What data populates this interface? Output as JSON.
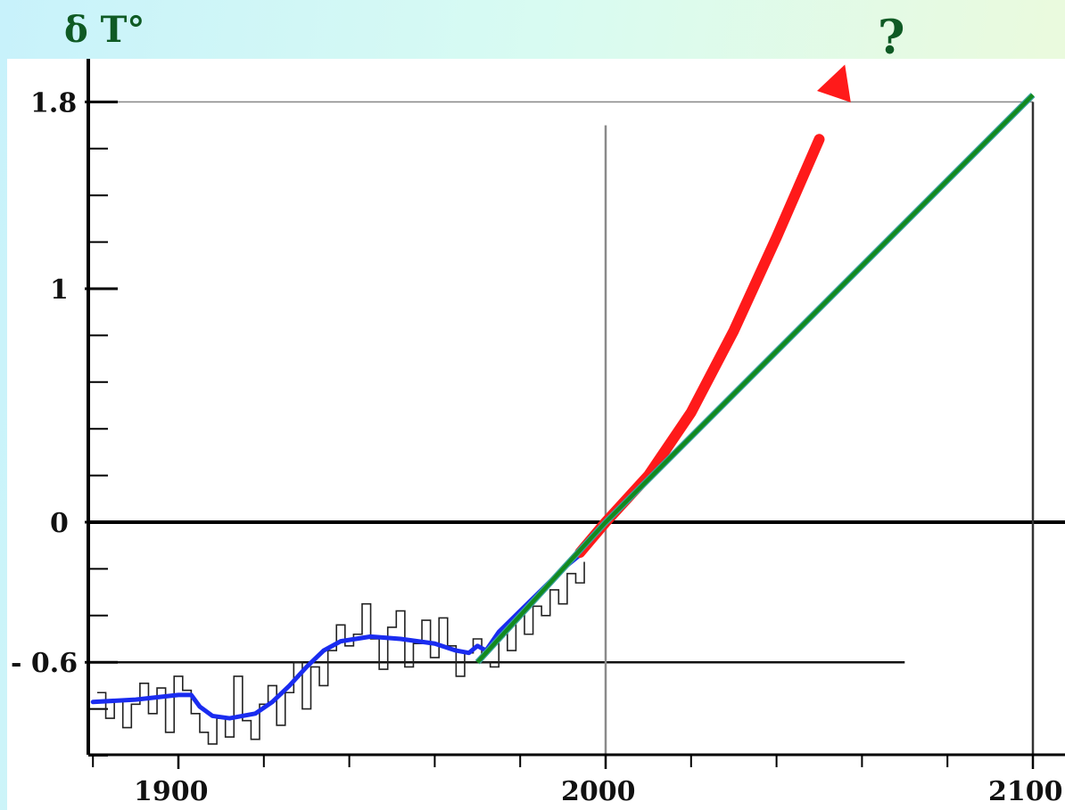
{
  "header": {
    "ylabel": "δ T°",
    "annotation": "?"
  },
  "colors": {
    "background": "#cdf6fb",
    "plot_area": "#ffffff",
    "observed_raw": "#222222",
    "observed_smooth": "#1a2cf0",
    "projection_high": "#ff1a1a",
    "projection_linear": "#138a1e",
    "label_green": "#0f5a24"
  },
  "chart_data": {
    "type": "line",
    "title": "",
    "xlabel": "",
    "ylabel": "δ T°",
    "xlim": [
      1880,
      2110
    ],
    "ylim": [
      -1.0,
      1.9
    ],
    "x_ticks_labeled": [
      1900,
      2000,
      2100
    ],
    "x_tick_labels": [
      "1900",
      "2000",
      "2100"
    ],
    "x_ticks_minor": [
      1880,
      1920,
      1940,
      1960,
      1980,
      2020,
      2040,
      2060,
      2080
    ],
    "y_ticks_labeled": [
      1.8,
      1,
      0,
      -0.6
    ],
    "y_tick_labels": [
      "1.8",
      "1",
      "0",
      "- 0.6"
    ],
    "y_ticks_minor": [
      1.6,
      1.4,
      1.2,
      0.8,
      0.6,
      0.4,
      0.2,
      -0.2,
      -0.4,
      -0.8,
      -1.0
    ],
    "reference_lines": [
      {
        "axis": "y",
        "value": 1.8,
        "x_from": 1880,
        "x_to": 2100
      },
      {
        "axis": "y",
        "value": 0,
        "x_from": 1880,
        "x_to": 2110
      },
      {
        "axis": "y",
        "value": -0.6,
        "x_from": 1880,
        "x_to": 2070
      },
      {
        "axis": "x",
        "value": 2000,
        "y_from": -1.0,
        "y_to": 1.7
      },
      {
        "axis": "x",
        "value": 2100,
        "y_from": -1.0,
        "y_to": 1.8
      }
    ],
    "series": [
      {
        "style": "raw",
        "x": [
          1881,
          1883,
          1885,
          1887,
          1889,
          1891,
          1893,
          1895,
          1897,
          1899,
          1901,
          1903,
          1905,
          1907,
          1909,
          1911,
          1913,
          1915,
          1917,
          1919,
          1921,
          1923,
          1925,
          1927,
          1929,
          1931,
          1933,
          1935,
          1937,
          1939,
          1941,
          1943,
          1945,
          1947,
          1949,
          1951,
          1953,
          1955,
          1957,
          1959,
          1961,
          1963,
          1965,
          1967,
          1969,
          1971,
          1973,
          1975,
          1977,
          1979,
          1981,
          1983,
          1985,
          1987,
          1989,
          1991,
          1993,
          1995
        ],
        "y": [
          -0.73,
          -0.84,
          -0.76,
          -0.88,
          -0.78,
          -0.69,
          -0.82,
          -0.71,
          -0.9,
          -0.66,
          -0.72,
          -0.82,
          -0.9,
          -0.95,
          -0.84,
          -0.92,
          -0.66,
          -0.85,
          -0.93,
          -0.78,
          -0.7,
          -0.87,
          -0.73,
          -0.6,
          -0.8,
          -0.62,
          -0.7,
          -0.55,
          -0.44,
          -0.53,
          -0.48,
          -0.35,
          -0.5,
          -0.63,
          -0.45,
          -0.38,
          -0.62,
          -0.52,
          -0.42,
          -0.58,
          -0.41,
          -0.53,
          -0.66,
          -0.56,
          -0.5,
          -0.6,
          -0.62,
          -0.47,
          -0.55,
          -0.4,
          -0.48,
          -0.36,
          -0.4,
          -0.29,
          -0.35,
          -0.22,
          -0.26,
          -0.17
        ]
      },
      {
        "style": "smooth",
        "x": [
          1880,
          1890,
          1900,
          1903,
          1905,
          1908,
          1912,
          1918,
          1922,
          1926,
          1930,
          1934,
          1938,
          1945,
          1952,
          1960,
          1965,
          1968,
          1970,
          1972,
          1975,
          1980,
          1985,
          1990,
          1994
        ],
        "y": [
          -0.77,
          -0.76,
          -0.74,
          -0.74,
          -0.79,
          -0.83,
          -0.84,
          -0.82,
          -0.77,
          -0.7,
          -0.62,
          -0.55,
          -0.51,
          -0.49,
          -0.5,
          -0.52,
          -0.55,
          -0.56,
          -0.53,
          -0.55,
          -0.47,
          -0.38,
          -0.29,
          -0.2,
          -0.14
        ]
      },
      {
        "style": "projection-high",
        "x": [
          1994,
          2000,
          2010,
          2020,
          2030,
          2040,
          2050,
          2056
        ],
        "y": [
          -0.13,
          0.0,
          0.2,
          0.47,
          0.82,
          1.22,
          1.64,
          1.96
        ]
      },
      {
        "style": "projection-linear",
        "x": [
          1970,
          2000,
          2100
        ],
        "y": [
          -0.6,
          0.0,
          1.83
        ]
      }
    ]
  }
}
